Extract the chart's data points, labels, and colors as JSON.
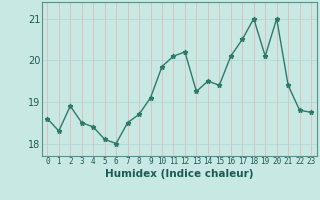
{
  "x": [
    0,
    1,
    2,
    3,
    4,
    5,
    6,
    7,
    8,
    9,
    10,
    11,
    12,
    13,
    14,
    15,
    16,
    17,
    18,
    19,
    20,
    21,
    22,
    23
  ],
  "y": [
    18.6,
    18.3,
    18.9,
    18.5,
    18.4,
    18.1,
    18.0,
    18.5,
    18.7,
    19.1,
    19.85,
    20.1,
    20.2,
    19.25,
    19.5,
    19.4,
    20.1,
    20.5,
    21.0,
    20.1,
    21.0,
    19.4,
    18.8,
    18.75
  ],
  "title": "",
  "xlabel": "Humidex (Indice chaleur)",
  "ylabel": "",
  "ylim": [
    17.7,
    21.4
  ],
  "xlim": [
    -0.5,
    23.5
  ],
  "yticks": [
    18,
    19,
    20,
    21
  ],
  "xtick_labels": [
    "0",
    "1",
    "2",
    "3",
    "4",
    "5",
    "6",
    "7",
    "8",
    "9",
    "10",
    "11",
    "12",
    "13",
    "14",
    "15",
    "16",
    "17",
    "18",
    "19",
    "20",
    "21",
    "22",
    "23"
  ],
  "line_color": "#2d7a6b",
  "marker": "*",
  "marker_size": 3.5,
  "bg_color": "#c8e8e4",
  "grid_color_v": "#e8b0b0",
  "grid_color_h": "#b0d4d0",
  "label_color": "#1a5c52",
  "tick_color": "#1a5c52",
  "border_color": "#5a9088",
  "xlabel_fontsize": 7.5,
  "ytick_fontsize": 7,
  "xtick_fontsize": 5.5
}
